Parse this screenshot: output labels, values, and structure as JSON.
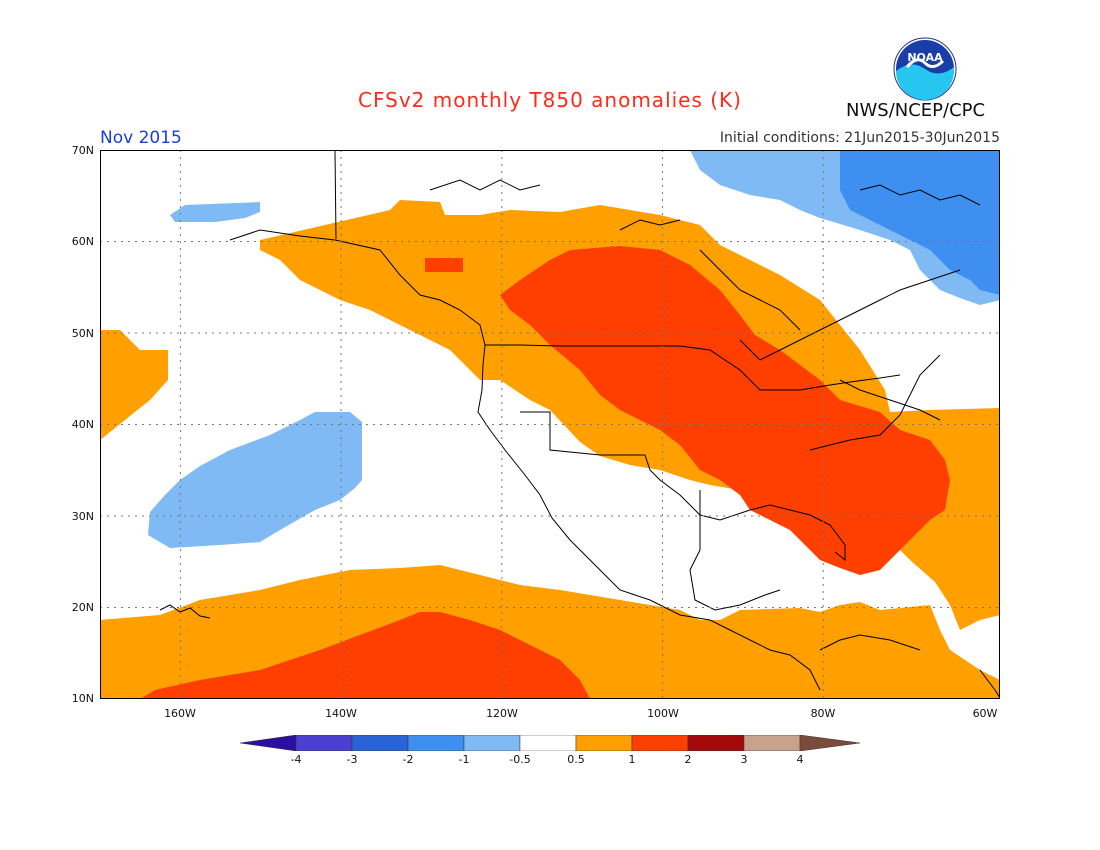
{
  "header": {
    "title": "CFSv2 monthly T850 anomalies (K)",
    "agency": "NWS/NCEP/CPC",
    "logo_text": "NOAA",
    "valid_month": "Nov 2015",
    "initial_conditions": "Initial conditions: 21Jun2015-30Jun2015"
  },
  "map": {
    "lat_labels": [
      "70N",
      "60N",
      "50N",
      "40N",
      "30N",
      "20N",
      "10N"
    ],
    "lon_labels": [
      "160W",
      "140W",
      "120W",
      "100W",
      "80W",
      "60W"
    ],
    "domain": {
      "lon_min": -172,
      "lon_max": -60,
      "lat_min": 10,
      "lat_max": 70
    }
  },
  "colorbar": {
    "labels": [
      "-4",
      "-3",
      "-2",
      "-1",
      "-0.5",
      "0.5",
      "1",
      "2",
      "3",
      "4"
    ],
    "colors": [
      "#2a0fa0",
      "#4b3fd0",
      "#2a63d8",
      "#3f8ff0",
      "#7fbaf5",
      "#ffffff",
      "#ff9f00",
      "#ff3f00",
      "#a30a0a",
      "#c9a28e",
      "#7a4a3a"
    ]
  },
  "legend_colors": {
    "neg_strong": "#3f8ff0",
    "neg_weak": "#7fbaf5",
    "pos_weak": "#ff9f00",
    "pos_mid": "#ff3f00"
  }
}
